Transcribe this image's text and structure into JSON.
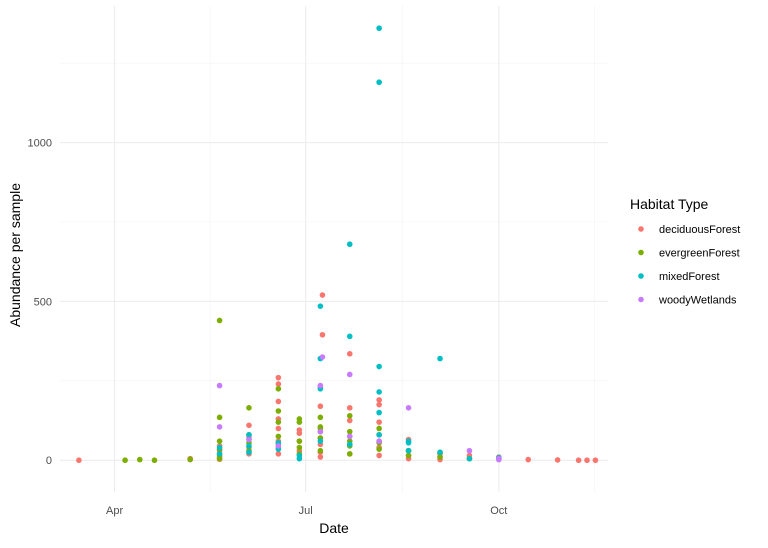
{
  "chart_data": {
    "type": "scatter",
    "title": "",
    "xlabel": "Date",
    "ylabel": "Abundance per sample",
    "x_axis_type": "date",
    "xlim": [
      "2019-03-06",
      "2019-11-22"
    ],
    "ylim": [
      -100,
      1430
    ],
    "x_ticks": [
      {
        "date": "2019-04-01",
        "label": "Apr"
      },
      {
        "date": "2019-07-01",
        "label": "Jul"
      },
      {
        "date": "2019-10-01",
        "label": "Oct"
      }
    ],
    "y_ticks": [
      0,
      500,
      1000
    ],
    "grid": true,
    "legend": {
      "title": "Habitat Type",
      "position": "right"
    },
    "series": [
      {
        "name": "deciduousForest",
        "color": "#F8766D",
        "points": [
          [
            "2019-03-15",
            0
          ],
          [
            "2019-05-07",
            2
          ],
          [
            "2019-05-07",
            5
          ],
          [
            "2019-05-21",
            3
          ],
          [
            "2019-05-21",
            10
          ],
          [
            "2019-05-21",
            20
          ],
          [
            "2019-05-21",
            30
          ],
          [
            "2019-05-21",
            45
          ],
          [
            "2019-06-04",
            20
          ],
          [
            "2019-06-04",
            40
          ],
          [
            "2019-06-04",
            70
          ],
          [
            "2019-06-04",
            110
          ],
          [
            "2019-06-18",
            20
          ],
          [
            "2019-06-18",
            40
          ],
          [
            "2019-06-18",
            60
          ],
          [
            "2019-06-18",
            100
          ],
          [
            "2019-06-18",
            130
          ],
          [
            "2019-06-18",
            185
          ],
          [
            "2019-06-18",
            240
          ],
          [
            "2019-06-18",
            260
          ],
          [
            "2019-06-28",
            30
          ],
          [
            "2019-06-28",
            60
          ],
          [
            "2019-06-28",
            85
          ],
          [
            "2019-06-28",
            95
          ],
          [
            "2019-07-08",
            10
          ],
          [
            "2019-07-08",
            25
          ],
          [
            "2019-07-08",
            50
          ],
          [
            "2019-07-08",
            70
          ],
          [
            "2019-07-08",
            90
          ],
          [
            "2019-07-08",
            170
          ],
          [
            "2019-07-08",
            230
          ],
          [
            "2019-07-09",
            395
          ],
          [
            "2019-07-09",
            520
          ],
          [
            "2019-07-22",
            20
          ],
          [
            "2019-07-22",
            50
          ],
          [
            "2019-07-22",
            75
          ],
          [
            "2019-07-22",
            125
          ],
          [
            "2019-07-22",
            165
          ],
          [
            "2019-07-22",
            335
          ],
          [
            "2019-08-05",
            15
          ],
          [
            "2019-08-05",
            40
          ],
          [
            "2019-08-05",
            60
          ],
          [
            "2019-08-05",
            80
          ],
          [
            "2019-08-05",
            120
          ],
          [
            "2019-08-05",
            175
          ],
          [
            "2019-08-05",
            190
          ],
          [
            "2019-08-19",
            5
          ],
          [
            "2019-08-19",
            15
          ],
          [
            "2019-08-19",
            30
          ],
          [
            "2019-08-19",
            65
          ],
          [
            "2019-09-03",
            2
          ],
          [
            "2019-09-03",
            10
          ],
          [
            "2019-09-03",
            20
          ],
          [
            "2019-09-17",
            5
          ],
          [
            "2019-09-17",
            15
          ],
          [
            "2019-10-01",
            3
          ],
          [
            "2019-10-01",
            10
          ],
          [
            "2019-10-15",
            2
          ],
          [
            "2019-10-29",
            1
          ],
          [
            "2019-11-08",
            0
          ],
          [
            "2019-11-12",
            0
          ],
          [
            "2019-11-16",
            0
          ]
        ]
      },
      {
        "name": "evergreenForest",
        "color": "#7CAE00",
        "points": [
          [
            "2019-04-06",
            0
          ],
          [
            "2019-04-13",
            2
          ],
          [
            "2019-04-20",
            0
          ],
          [
            "2019-05-07",
            3
          ],
          [
            "2019-05-21",
            5
          ],
          [
            "2019-05-21",
            15
          ],
          [
            "2019-05-21",
            35
          ],
          [
            "2019-05-21",
            60
          ],
          [
            "2019-05-21",
            135
          ],
          [
            "2019-05-21",
            440
          ],
          [
            "2019-06-04",
            30
          ],
          [
            "2019-06-04",
            55
          ],
          [
            "2019-06-04",
            80
          ],
          [
            "2019-06-04",
            165
          ],
          [
            "2019-06-18",
            50
          ],
          [
            "2019-06-18",
            75
          ],
          [
            "2019-06-18",
            120
          ],
          [
            "2019-06-18",
            155
          ],
          [
            "2019-06-18",
            225
          ],
          [
            "2019-06-28",
            20
          ],
          [
            "2019-06-28",
            40
          ],
          [
            "2019-06-28",
            60
          ],
          [
            "2019-06-28",
            120
          ],
          [
            "2019-06-28",
            130
          ],
          [
            "2019-07-08",
            30
          ],
          [
            "2019-07-08",
            70
          ],
          [
            "2019-07-08",
            100
          ],
          [
            "2019-07-08",
            105
          ],
          [
            "2019-07-08",
            135
          ],
          [
            "2019-07-22",
            20
          ],
          [
            "2019-07-22",
            45
          ],
          [
            "2019-07-22",
            60
          ],
          [
            "2019-07-22",
            90
          ],
          [
            "2019-07-22",
            140
          ],
          [
            "2019-08-05",
            35
          ],
          [
            "2019-08-05",
            55
          ],
          [
            "2019-08-05",
            100
          ],
          [
            "2019-08-19",
            15
          ],
          [
            "2019-08-19",
            30
          ],
          [
            "2019-09-03",
            10
          ],
          [
            "2019-09-03",
            25
          ],
          [
            "2019-09-17",
            5
          ],
          [
            "2019-10-01",
            5
          ]
        ]
      },
      {
        "name": "mixedForest",
        "color": "#00BFC4",
        "points": [
          [
            "2019-05-21",
            20
          ],
          [
            "2019-05-21",
            40
          ],
          [
            "2019-06-04",
            25
          ],
          [
            "2019-06-04",
            45
          ],
          [
            "2019-06-04",
            80
          ],
          [
            "2019-06-18",
            35
          ],
          [
            "2019-06-18",
            55
          ],
          [
            "2019-06-28",
            5
          ],
          [
            "2019-06-28",
            15
          ],
          [
            "2019-07-08",
            60
          ],
          [
            "2019-07-08",
            225
          ],
          [
            "2019-07-08",
            320
          ],
          [
            "2019-07-08",
            485
          ],
          [
            "2019-07-22",
            50
          ],
          [
            "2019-07-22",
            390
          ],
          [
            "2019-07-22",
            680
          ],
          [
            "2019-08-05",
            80
          ],
          [
            "2019-08-05",
            150
          ],
          [
            "2019-08-05",
            215
          ],
          [
            "2019-08-05",
            295
          ],
          [
            "2019-08-05",
            1190
          ],
          [
            "2019-08-05",
            1360
          ],
          [
            "2019-08-19",
            30
          ],
          [
            "2019-08-19",
            55
          ],
          [
            "2019-08-19",
            60
          ],
          [
            "2019-09-03",
            25
          ],
          [
            "2019-09-03",
            320
          ],
          [
            "2019-09-17",
            5
          ],
          [
            "2019-10-01",
            8
          ]
        ]
      },
      {
        "name": "woodyWetlands",
        "color": "#C77CFF",
        "points": [
          [
            "2019-05-21",
            105
          ],
          [
            "2019-05-21",
            235
          ],
          [
            "2019-06-04",
            65
          ],
          [
            "2019-06-18",
            45
          ],
          [
            "2019-07-08",
            90
          ],
          [
            "2019-07-08",
            235
          ],
          [
            "2019-07-09",
            325
          ],
          [
            "2019-07-22",
            75
          ],
          [
            "2019-07-22",
            270
          ],
          [
            "2019-08-05",
            60
          ],
          [
            "2019-08-19",
            165
          ],
          [
            "2019-09-17",
            30
          ],
          [
            "2019-10-01",
            2
          ],
          [
            "2019-10-01",
            5
          ]
        ]
      }
    ]
  }
}
